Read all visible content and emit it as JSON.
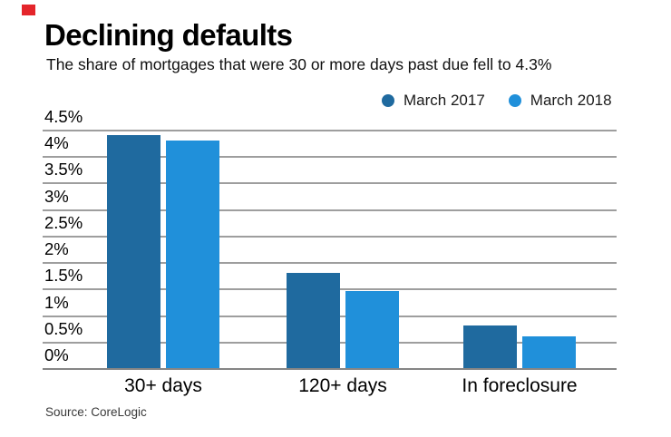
{
  "brand": {
    "accent_color": "#e4252b"
  },
  "header": {
    "title": "Declining defaults",
    "subtitle": "The share of mortgages that were 30 or more days past due fell to 4.3%"
  },
  "legend": {
    "items": [
      {
        "label": "March 2017",
        "color": "#1f6a9f"
      },
      {
        "label": "March 2018",
        "color": "#2090da"
      }
    ]
  },
  "chart_data": {
    "type": "bar",
    "title": "Declining defaults",
    "subtitle": "The share of mortgages that were 30 or more days past due fell to 4.3%",
    "categories": [
      "30+ days",
      "120+ days",
      "In foreclosure"
    ],
    "series": [
      {
        "name": "March 2017",
        "color": "#1f6a9f",
        "values": [
          4.4,
          1.8,
          0.8
        ]
      },
      {
        "name": "March 2018",
        "color": "#2090da",
        "values": [
          4.3,
          1.45,
          0.6
        ]
      }
    ],
    "ylim": [
      0,
      4.5
    ],
    "yticks": [
      "4.5%",
      "4%",
      "3.5%",
      "3%",
      "2.5%",
      "2%",
      "1.5%",
      "1%",
      "0.5%",
      "0%"
    ],
    "ytick_values": [
      4.5,
      4,
      3.5,
      3,
      2.5,
      2,
      1.5,
      1,
      0.5,
      0
    ],
    "grid": true,
    "legend_position": "top-right"
  },
  "footer": {
    "source": "Source: CoreLogic"
  }
}
